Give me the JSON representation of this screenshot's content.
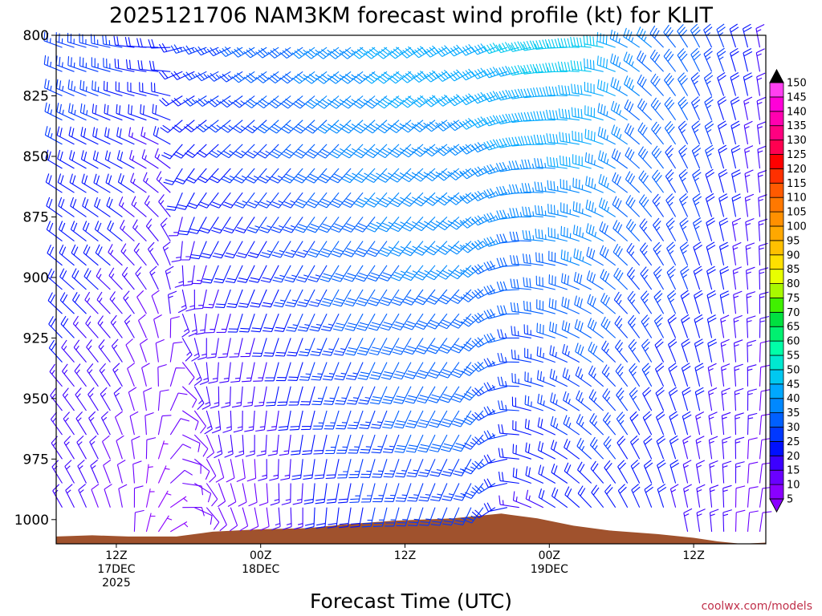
{
  "chart_data": {
    "type": "wind-barb-profile",
    "title": "2025121706 NAM3KM forecast wind profile (kt) for KLIT",
    "xlabel": "Forecast Time (UTC)",
    "ylabel": "",
    "credit": "coolwx.com/models",
    "y_axis": {
      "units": "hPa",
      "range": [
        1010,
        800
      ],
      "ticks": [
        800,
        825,
        850,
        875,
        900,
        925,
        950,
        975,
        1000
      ]
    },
    "x_axis": {
      "units": "forecast hour",
      "range": [
        7,
        66
      ],
      "ticks": [
        {
          "hour": 12,
          "lines": [
            "12Z",
            "17DEC",
            "2025"
          ]
        },
        {
          "hour": 24,
          "lines": [
            "00Z",
            "18DEC"
          ]
        },
        {
          "hour": 36,
          "lines": [
            "12Z"
          ]
        },
        {
          "hour": 48,
          "lines": [
            "00Z",
            "19DEC"
          ]
        },
        {
          "hour": 60,
          "lines": [
            "12Z"
          ]
        }
      ]
    },
    "colorbar": {
      "levels": [
        5,
        10,
        15,
        20,
        25,
        30,
        35,
        40,
        45,
        50,
        55,
        60,
        65,
        70,
        75,
        80,
        85,
        90,
        95,
        100,
        105,
        110,
        115,
        120,
        125,
        130,
        135,
        140,
        145,
        150
      ],
      "colors": [
        "#8a00ff",
        "#6a00ff",
        "#3c00ff",
        "#0010ff",
        "#0038ff",
        "#0060ff",
        "#0088ff",
        "#00a8ff",
        "#00c8f0",
        "#00e8d0",
        "#00ffa8",
        "#00f070",
        "#00e040",
        "#40f000",
        "#a8f800",
        "#e8ff00",
        "#ffe000",
        "#ffc000",
        "#ffa800",
        "#ff9000",
        "#ff7800",
        "#ff5a00",
        "#ff3000",
        "#ff0000",
        "#ff0050",
        "#ff0080",
        "#ff00b0",
        "#ff00d8",
        "#ff40f0",
        "#ffffff"
      ]
    },
    "terrain_surface_pressure": [
      {
        "hour": 7,
        "p": 1007
      },
      {
        "hour": 10,
        "p": 1006.5
      },
      {
        "hour": 13,
        "p": 1007
      },
      {
        "hour": 17,
        "p": 1007
      },
      {
        "hour": 20,
        "p": 1005
      },
      {
        "hour": 24,
        "p": 1004
      },
      {
        "hour": 28,
        "p": 1003.5
      },
      {
        "hour": 31,
        "p": 1002
      },
      {
        "hour": 35,
        "p": 1000.5
      },
      {
        "hour": 40,
        "p": 999.5
      },
      {
        "hour": 44,
        "p": 997.5
      },
      {
        "hour": 47,
        "p": 999.5
      },
      {
        "hour": 50,
        "p": 1002.5
      },
      {
        "hour": 53,
        "p": 1004.5
      },
      {
        "hour": 57,
        "p": 1006
      },
      {
        "hour": 60,
        "p": 1007.5
      },
      {
        "hour": 62,
        "p": 1009
      },
      {
        "hour": 64,
        "p": 1010
      },
      {
        "hour": 66,
        "p": 1009.5
      }
    ],
    "wind_anchors": [
      {
        "hour": 7,
        "low": {
          "dir": 330,
          "spd": 15
        },
        "high": {
          "dir": 290,
          "spd": 25
        }
      },
      {
        "hour": 12,
        "low": {
          "dir": 345,
          "spd": 10
        },
        "high": {
          "dir": 280,
          "spd": 25
        }
      },
      {
        "hour": 15,
        "low": {
          "dir": 20,
          "spd": 5
        },
        "high": {
          "dir": 270,
          "spd": 20
        }
      },
      {
        "hour": 20,
        "low": {
          "dir": 150,
          "spd": 10
        },
        "high": {
          "dir": 250,
          "spd": 25
        }
      },
      {
        "hour": 24,
        "low": {
          "dir": 170,
          "spd": 10
        },
        "high": {
          "dir": 240,
          "spd": 30
        }
      },
      {
        "hour": 30,
        "low": {
          "dir": 185,
          "spd": 20
        },
        "high": {
          "dir": 235,
          "spd": 35
        }
      },
      {
        "hour": 36,
        "low": {
          "dir": 195,
          "spd": 25
        },
        "high": {
          "dir": 235,
          "spd": 40
        }
      },
      {
        "hour": 42,
        "low": {
          "dir": 205,
          "spd": 25
        },
        "high": {
          "dir": 245,
          "spd": 40
        }
      },
      {
        "hour": 46,
        "low": {
          "dir": 290,
          "spd": 15
        },
        "high": {
          "dir": 255,
          "spd": 45
        }
      },
      {
        "hour": 52,
        "low": {
          "dir": 320,
          "spd": 20
        },
        "high": {
          "dir": 275,
          "spd": 45
        }
      },
      {
        "hour": 55,
        "low": {
          "dir": 335,
          "spd": 20
        },
        "high": {
          "dir": 300,
          "spd": 35
        }
      },
      {
        "hour": 60,
        "low": {
          "dir": 350,
          "spd": 15
        },
        "high": {
          "dir": 330,
          "spd": 30
        }
      },
      {
        "hour": 66,
        "low": {
          "dir": 10,
          "spd": 10
        },
        "high": {
          "dir": 350,
          "spd": 15
        }
      }
    ],
    "barb_pressure_levels": [
      805,
      815,
      825,
      835,
      845,
      855,
      865,
      875,
      885,
      895,
      905,
      915,
      925,
      935,
      945,
      955,
      965,
      975,
      985,
      995,
      1005
    ]
  }
}
